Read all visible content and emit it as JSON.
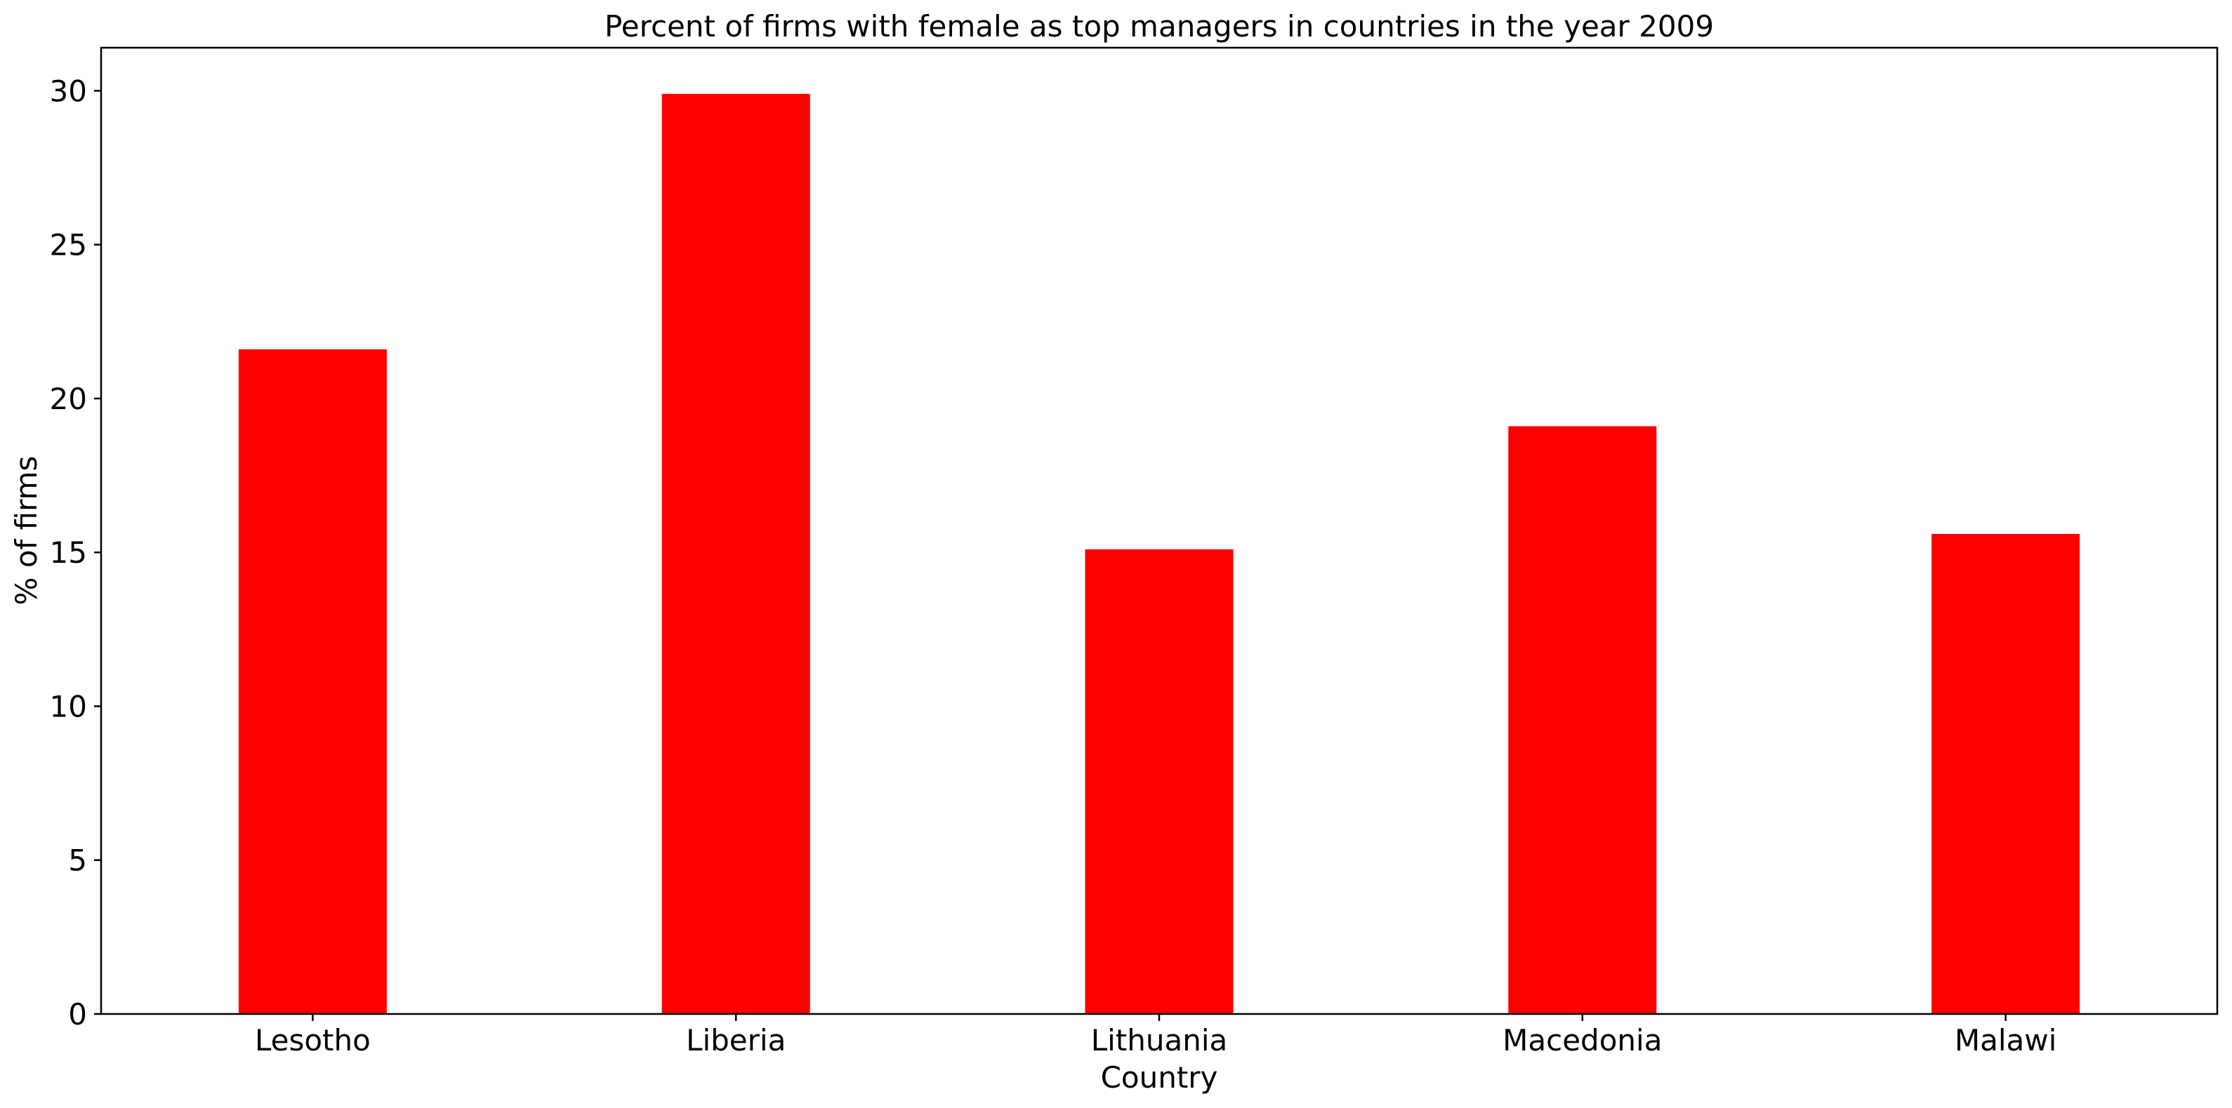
{
  "chart_data": {
    "type": "bar",
    "title": "Percent of firms with female as top managers in countries in the year 2009",
    "xlabel": "Country",
    "ylabel": "% of firms",
    "categories": [
      "Lesotho",
      "Liberia",
      "Lithuania",
      "Macedonia",
      "Malawi"
    ],
    "values": [
      21.6,
      29.9,
      15.1,
      19.1,
      15.6
    ],
    "ylim": [
      0,
      31.4
    ],
    "yticks": [
      0,
      5,
      10,
      15,
      20,
      25,
      30
    ],
    "grid": false,
    "legend": "none",
    "colors": {
      "bar": "#ff0000",
      "axis": "#000000",
      "background": "#ffffff"
    }
  }
}
